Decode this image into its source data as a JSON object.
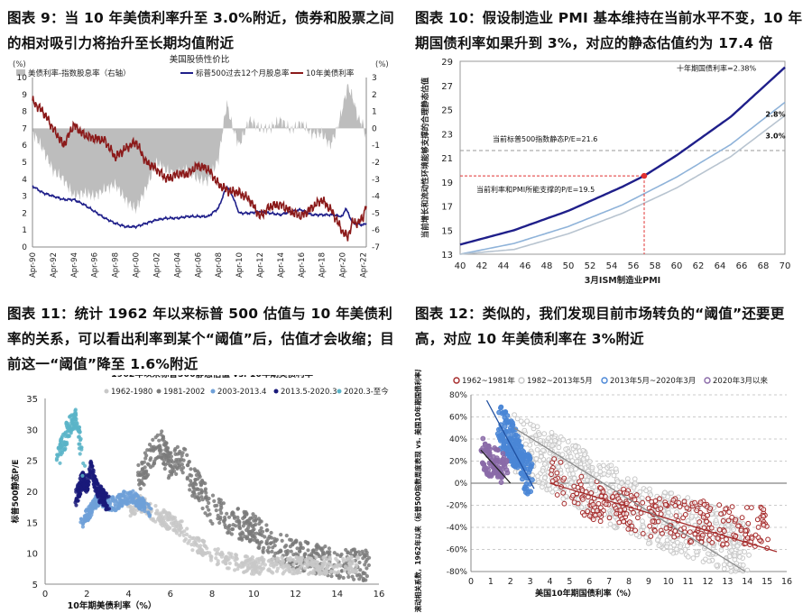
{
  "panels": {
    "p9": {
      "title": "图表 9：当 10 年美债利率升至 3.0%附近，债券和股票之间的相对吸引力将抬升至长期均值附近"
    },
    "p10": {
      "title": "图表 10：假设制造业 PMI 基本维持在当前水平不变，10 年期国债利率如果升到 3%，对应的静态估值约为 17.4 倍"
    },
    "p11": {
      "title": "图表 11：统计 1962 年以来标普 500 估值与 10 年美债利率的关系，可以看出利率到某个“阈值”后，估值才会收缩；目前这一“阈值”降至 1.6%附近"
    },
    "p12": {
      "title": "图表 12：类似的，我们发现目前市场转负的“阈值”还要更高，对应 10 年美债利率在 3%附近"
    }
  },
  "chart_data": [
    {
      "id": "chart9",
      "type": "line",
      "title": "美国股债性价比",
      "left_unit": "(%)",
      "right_unit": "(%)",
      "x_ticks": [
        "Apr-90",
        "Apr-92",
        "Apr-94",
        "Apr-96",
        "Apr-98",
        "Apr-00",
        "Apr-02",
        "Apr-04",
        "Apr-06",
        "Apr-08",
        "Apr-10",
        "Apr-12",
        "Apr-14",
        "Apr-16",
        "Apr-18",
        "Apr-20",
        "Apr-22"
      ],
      "ylim_left": [
        0,
        10
      ],
      "ylim_right": [
        -7,
        3
      ],
      "legend": [
        "美债利率-指数股息率（右轴）",
        "标普500过去12个月股息率",
        "10年美债利率"
      ],
      "colors": {
        "spread": "#bdbdbd",
        "dividend": "#1f1f8a",
        "treasury": "#8b1a1a"
      },
      "series": [
        {
          "name": "美债利率-指数股息率（右轴）",
          "axis": "right",
          "x": [
            1990,
            1991,
            1992,
            1993,
            1994,
            1995,
            1996,
            1997,
            1998,
            1999,
            2000,
            2001,
            2002,
            2003,
            2004,
            2005,
            2006,
            2007,
            2008,
            2008.8,
            2009.3,
            2010,
            2011,
            2012,
            2013,
            2014,
            2015,
            2016,
            2017,
            2018,
            2018.8,
            2019.5,
            2020,
            2020.5,
            2021,
            2021.5,
            2022,
            2022.3
          ],
          "values": [
            -0.2,
            -1.2,
            -2.5,
            -3.0,
            -4.0,
            -3.8,
            -4.0,
            -3.6,
            -3.3,
            -4.2,
            -4.8,
            -3.5,
            -2.0,
            -2.5,
            -2.7,
            -2.4,
            -3.0,
            -3.1,
            -1.8,
            1.5,
            0.2,
            -1.0,
            0.5,
            0.0,
            0.0,
            0.5,
            -0.1,
            0.3,
            -0.3,
            -0.3,
            -1.0,
            0.0,
            1.2,
            2.5,
            1.8,
            0.6,
            0.2,
            -0.6
          ]
        },
        {
          "name": "标普500过去12个月股息率",
          "axis": "left",
          "x": [
            1990,
            1991,
            1992,
            1993,
            1994,
            1995,
            1996,
            1997,
            1998,
            1999,
            2000,
            2001,
            2002,
            2003,
            2004,
            2005,
            2006,
            2007,
            2008,
            2008.8,
            2009.3,
            2010,
            2011,
            2012,
            2013,
            2014,
            2015,
            2016,
            2017,
            2018,
            2019,
            2020,
            2020.3,
            2021,
            2022,
            2022.3
          ],
          "values": [
            3.6,
            3.2,
            3.0,
            2.8,
            2.8,
            2.5,
            2.1,
            1.7,
            1.4,
            1.2,
            1.2,
            1.4,
            1.6,
            1.7,
            1.7,
            1.8,
            1.8,
            1.8,
            2.3,
            3.6,
            3.1,
            2.0,
            2.0,
            2.1,
            2.0,
            1.9,
            2.1,
            2.2,
            1.9,
            1.9,
            1.9,
            1.8,
            2.3,
            1.4,
            1.3,
            1.4
          ]
        },
        {
          "name": "10年美债利率",
          "axis": "left",
          "x": [
            1990,
            1991,
            1992,
            1993,
            1994,
            1995,
            1996,
            1997,
            1998,
            1999,
            2000,
            2001,
            2002,
            2003,
            2004,
            2005,
            2006,
            2007,
            2008,
            2009,
            2010,
            2011,
            2012,
            2013,
            2014,
            2015,
            2016,
            2017,
            2018,
            2019,
            2020,
            2020.5,
            2021,
            2021.5,
            2022,
            2022.3
          ],
          "values": [
            8.6,
            8.0,
            7.0,
            6.0,
            7.2,
            6.6,
            6.4,
            6.3,
            5.3,
            5.8,
            6.2,
            5.0,
            4.6,
            4.0,
            4.3,
            4.3,
            4.8,
            4.6,
            3.7,
            3.3,
            3.2,
            2.8,
            1.8,
            2.4,
            2.5,
            2.1,
            1.8,
            2.3,
            2.8,
            2.1,
            0.9,
            0.6,
            1.5,
            1.4,
            1.8,
            2.5
          ]
        }
      ]
    },
    {
      "id": "chart10",
      "type": "line",
      "title": "",
      "xlabel": "3月ISM制造业PMI",
      "ylabel": "当前增长和流动性环境能够支撑的合理静态估值",
      "xlim": [
        40,
        70
      ],
      "ylim": [
        13,
        29
      ],
      "x_ticks": [
        40,
        42,
        44,
        46,
        48,
        50,
        52,
        54,
        56,
        58,
        60,
        62,
        64,
        66,
        68,
        70
      ],
      "y_ticks": [
        13,
        15,
        17,
        19,
        21,
        23,
        25,
        27,
        29
      ],
      "colors": {
        "s238": "#1f1f8a",
        "s28": "#8fb3d9",
        "s3": "#b8c4d0",
        "marker": "#e03030"
      },
      "series": [
        {
          "name": "十年期国债利率=2.38%",
          "x": [
            40,
            45,
            50,
            55,
            57,
            60,
            65,
            70
          ],
          "values": [
            13.8,
            15.0,
            16.6,
            18.6,
            19.5,
            21.2,
            24.4,
            28.5
          ]
        },
        {
          "name": "2.8%",
          "x": [
            40,
            45,
            50,
            55,
            60,
            65,
            70
          ],
          "values": [
            13.0,
            13.9,
            15.3,
            17.1,
            19.4,
            22.1,
            25.6
          ]
        },
        {
          "name": "3.0%",
          "x": [
            40,
            45,
            50,
            55,
            60,
            65,
            70
          ],
          "values": [
            13.0,
            13.4,
            14.7,
            16.4,
            18.5,
            21.1,
            24.5
          ]
        }
      ],
      "annotations": [
        {
          "text": "当前标普500指数静态P/E=21.6",
          "y": 21.6
        },
        {
          "text": "当前利率和PMI所能支撑的P/E=19.5",
          "x": 57,
          "y": 19.5
        }
      ]
    },
    {
      "id": "chart11",
      "type": "scatter",
      "title": "1962年以来标普500静态估值 vs. 10年期美债利率",
      "xlabel": "10年期美债利率（%）",
      "ylabel": "标普500静态P/E",
      "xlim": [
        0,
        16
      ],
      "ylim": [
        5,
        35
      ],
      "x_ticks": [
        0,
        2,
        4,
        6,
        8,
        10,
        12,
        14,
        16
      ],
      "y_ticks": [
        5,
        10,
        15,
        20,
        25,
        30,
        35
      ],
      "series": [
        {
          "name": "1962-1980",
          "color": "#c8c8c8",
          "x": [
            4,
            4.5,
            5,
            5.5,
            6,
            6.5,
            7,
            7.5,
            8,
            8.5,
            9,
            10,
            11,
            12,
            13,
            14,
            15
          ],
          "values": [
            17,
            18,
            17,
            16,
            15,
            14,
            12,
            11,
            10,
            9,
            8.5,
            8,
            8,
            8,
            8,
            8,
            8
          ]
        },
        {
          "name": "1981-2002",
          "color": "#7a7a7a",
          "x": [
            4.5,
            5,
            5.5,
            6,
            6.5,
            7,
            7.5,
            8,
            8.5,
            9,
            10,
            11,
            12,
            13,
            14,
            15.5
          ],
          "values": [
            22,
            25,
            28,
            24,
            26,
            22,
            20,
            17,
            16,
            15,
            14,
            11,
            10,
            9,
            8.5,
            8
          ]
        },
        {
          "name": "2003-2013.4",
          "color": "#6fa0d8",
          "x": [
            1.8,
            2.2,
            2.6,
            3.0,
            3.4,
            3.8,
            4.2,
            4.6,
            5.0
          ],
          "values": [
            15,
            17,
            19,
            18,
            18,
            19,
            19,
            18,
            17
          ]
        },
        {
          "name": "2013.5-2020.3",
          "color": "#1a1a7a",
          "x": [
            1.5,
            1.8,
            2.0,
            2.2,
            2.5,
            2.8,
            3.0
          ],
          "values": [
            19,
            22,
            21,
            24,
            20,
            19,
            18
          ]
        },
        {
          "name": "2020.3-至今",
          "color": "#5ab4c8",
          "x": [
            0.6,
            0.8,
            1.0,
            1.2,
            1.4,
            1.6,
            1.8
          ],
          "values": [
            25,
            27,
            29,
            31,
            32,
            30,
            24
          ]
        }
      ]
    },
    {
      "id": "chart12",
      "type": "scatter",
      "title": "",
      "xlabel": "美国10年期国债利率（%）",
      "ylabel": "52周滚动相关系数，1962年以来（标普500指数周度表现 vs. 美国10年期国债利率周度变化）",
      "xlim": [
        0,
        16
      ],
      "ylim": [
        -80,
        80
      ],
      "x_ticks": [
        0,
        1,
        2,
        3,
        4,
        5,
        6,
        7,
        8,
        9,
        10,
        11,
        12,
        13,
        14,
        15,
        16
      ],
      "y_ticks": [
        "-80%",
        "-60%",
        "-40%",
        "-20%",
        "0%",
        "20%",
        "40%",
        "60%",
        "80%"
      ],
      "series": [
        {
          "name": "1962~1981年",
          "color": "#a52a2a",
          "x": [
            4,
            5,
            6,
            7,
            8,
            9,
            10,
            11,
            12,
            13,
            14,
            15
          ],
          "values": [
            10,
            -5,
            -15,
            -20,
            -25,
            -30,
            -30,
            -35,
            -35,
            -40,
            -40,
            -40
          ],
          "trend": [
            [
              4,
              0
            ],
            [
              15.5,
              -62
            ]
          ]
        },
        {
          "name": "1982~2013年5月",
          "color": "#c8c8c8",
          "x": [
            2,
            3,
            4,
            5,
            6,
            7,
            8,
            9,
            10,
            11,
            12,
            13,
            14
          ],
          "values": [
            40,
            30,
            20,
            10,
            0,
            -10,
            -20,
            -30,
            -35,
            -40,
            -45,
            -55,
            -65
          ],
          "trend": [
            [
              2.2,
              50
            ],
            [
              13.9,
              -80
            ]
          ]
        },
        {
          "name": "2013年5月~2020年3月",
          "color": "#4a86d6",
          "x": [
            1.5,
            2.0,
            2.5,
            3.0
          ],
          "values": [
            50,
            40,
            20,
            5
          ],
          "trend": [
            [
              0.8,
              75
            ],
            [
              3.2,
              -5
            ]
          ]
        },
        {
          "name": "2020年3月以来",
          "color": "#8a6aa8",
          "x": [
            0.6,
            0.9,
            1.2,
            1.5,
            1.8
          ],
          "values": [
            28,
            20,
            20,
            15,
            10
          ],
          "trend": [
            [
              0.5,
              30
            ],
            [
              2.0,
              0
            ]
          ]
        }
      ]
    }
  ]
}
